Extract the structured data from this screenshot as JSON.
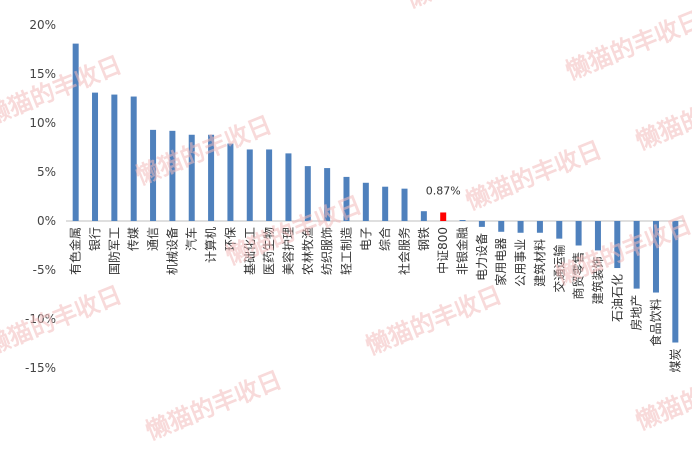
{
  "chart_data": {
    "type": "bar",
    "title": "",
    "xlabel": "",
    "ylabel": "",
    "ylim": [
      -15,
      20
    ],
    "ytick_step": 5,
    "ytick_labels": [
      "20%",
      "15%",
      "10%",
      "5%",
      "0%",
      "-5%",
      "-10%",
      "-15%"
    ],
    "grid": false,
    "legend": "none",
    "categories": [
      "有色金属",
      "银行",
      "国防军工",
      "传媒",
      "通信",
      "机械设备",
      "汽车",
      "计算机",
      "环保",
      "基础化工",
      "医药生物",
      "美容护理",
      "农林牧渔",
      "纺织服饰",
      "轻工制造",
      "电子",
      "综合",
      "社会服务",
      "钢铁",
      "中证800",
      "非银金融",
      "电力设备",
      "家用电器",
      "公用事业",
      "建筑材料",
      "交通运输",
      "商贸零售",
      "建筑装饰",
      "石油石化",
      "房地产",
      "食品饮料",
      "煤炭"
    ],
    "series": [
      {
        "values": [
          18.1,
          13.1,
          12.9,
          12.7,
          9.3,
          9.2,
          8.8,
          8.8,
          7.9,
          7.3,
          7.3,
          6.9,
          5.6,
          5.4,
          4.5,
          3.9,
          3.5,
          3.3,
          1.0,
          0.87,
          0.1,
          -0.6,
          -1.1,
          -1.2,
          -1.2,
          -1.8,
          -2.5,
          -3.0,
          -4.8,
          -6.9,
          -7.3,
          -12.4
        ]
      }
    ],
    "highlight": {
      "category": "中证800",
      "label": "0.87%"
    },
    "colors": {
      "bar": "#4f81bd",
      "highlight": "#ff0000",
      "axis": "#bfbfbf"
    },
    "watermark": "懒猫的丰收日"
  }
}
